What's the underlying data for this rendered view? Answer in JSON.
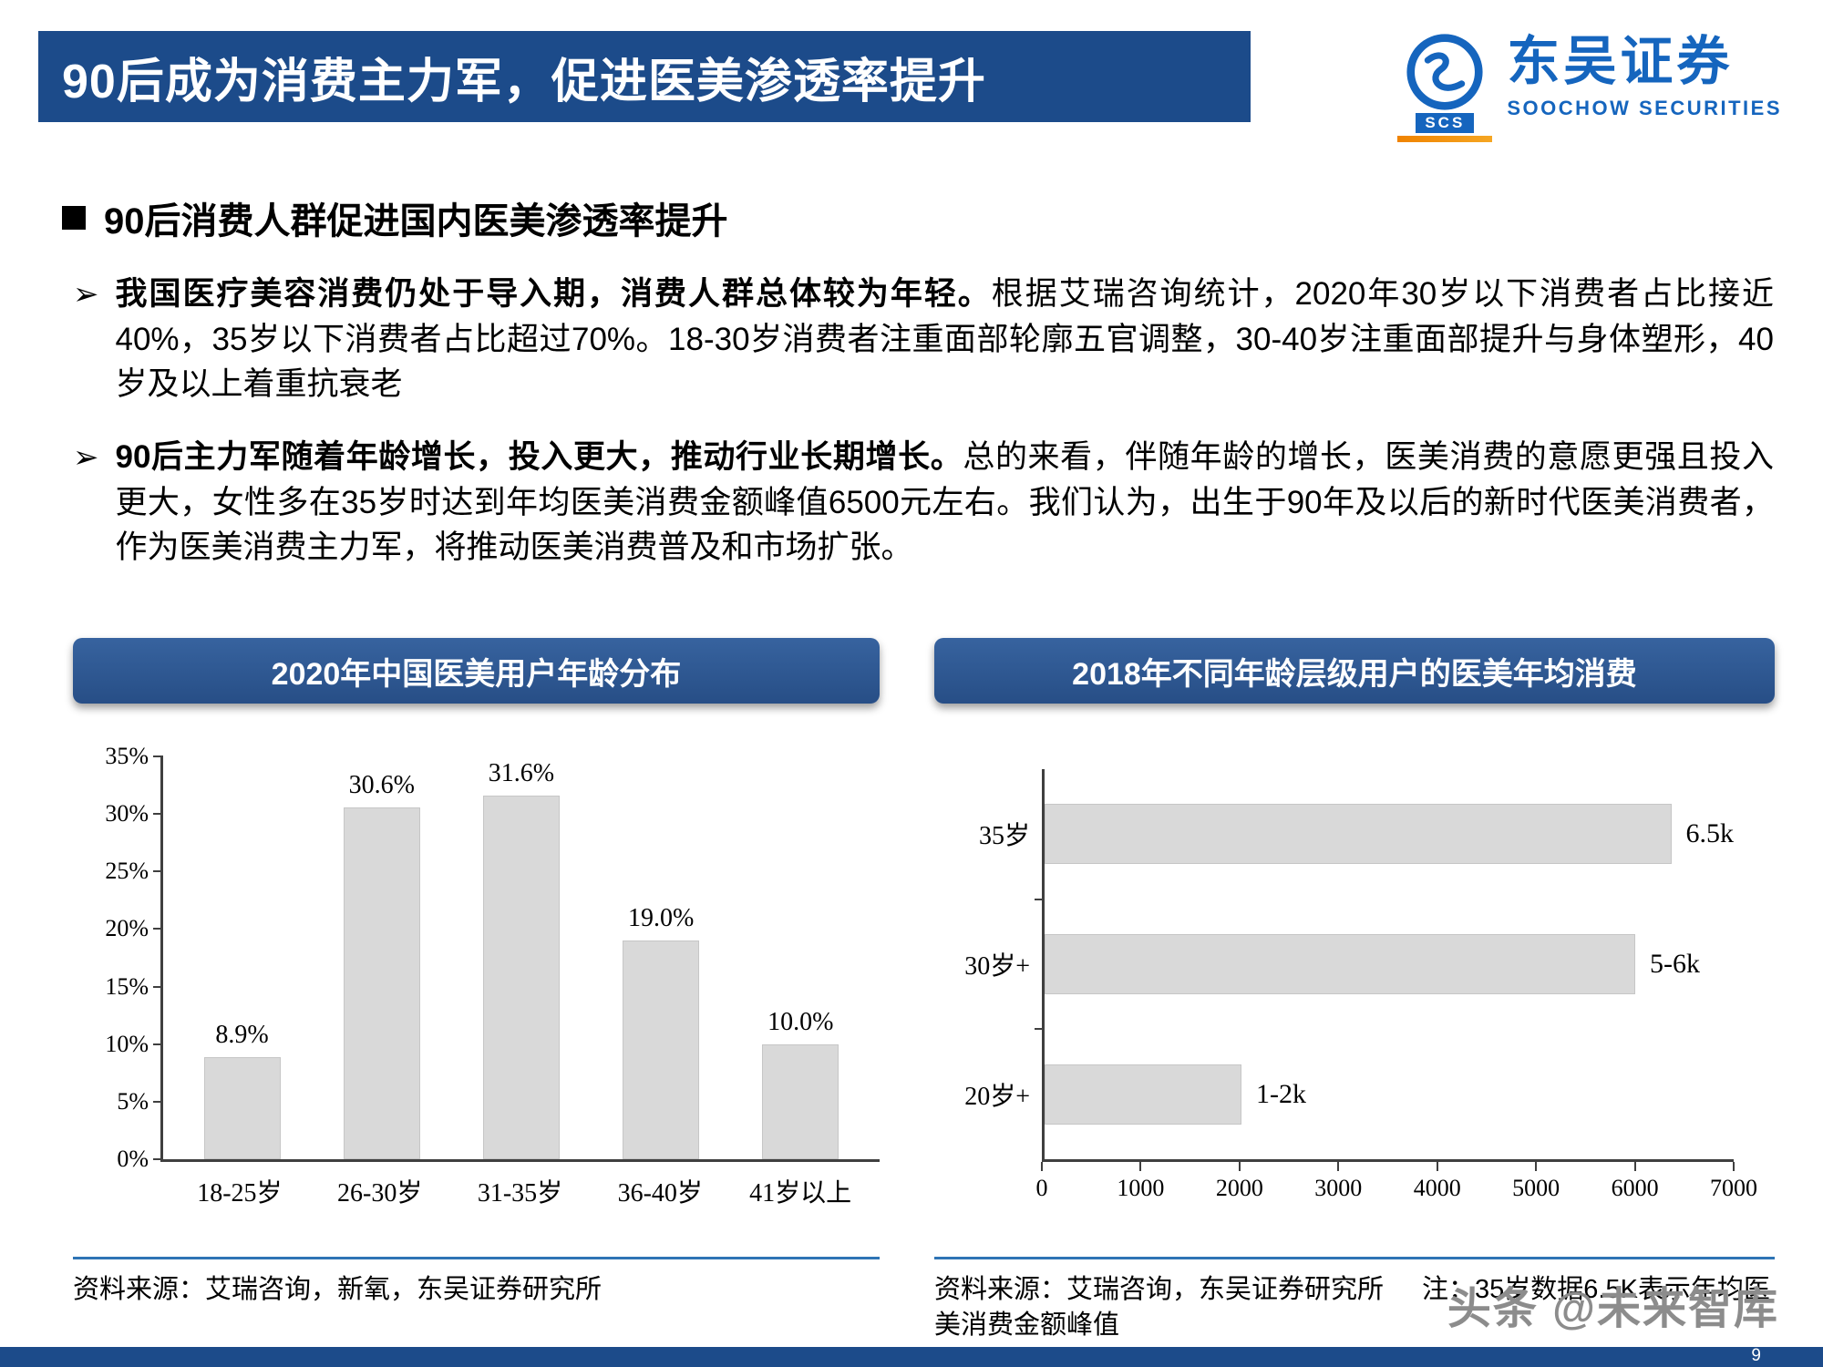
{
  "page": {
    "title": "90后成为消费主力军，促进医美渗透率提升",
    "page_number": "9",
    "watermark": "头条 @未来智库"
  },
  "logo": {
    "brand_cn": "东吴证券",
    "brand_en": "SOOCHOW SECURITIES",
    "badge": "SCS"
  },
  "icons": {
    "arrow_bullet": "➢"
  },
  "content": {
    "section_heading": "90后消费人群促进国内医美渗透率提升",
    "bullets": [
      {
        "bold": "我国医疗美容消费仍处于导入期，消费人群总体较为年轻。",
        "text": "根据艾瑞咨询统计，2020年30岁以下消费者占比接近40%，35岁以下消费者占比超过70%。18-30岁消费者注重面部轮廓五官调整，30-40岁注重面部提升与身体塑形，40岁及以上着重抗衰老"
      },
      {
        "bold": "90后主力军随着年龄增长，投入更大，推动行业长期增长。",
        "text": "总的来看，伴随年龄的增长，医美消费的意愿更强且投入更大，女性多在35岁时达到年均医美消费金额峰值6500元左右。我们认为，出生于90年及以后的新时代医美消费者，作为医美消费主力军，将推动医美消费普及和市场扩张。"
      }
    ]
  },
  "charts": {
    "left": {
      "title": "2020年中国医美用户年龄分布",
      "source": "资料来源：艾瑞咨询，新氧，东吴证券研究所"
    },
    "right": {
      "title": "2018年不同年龄层级用户的医美年均消费",
      "source": "资料来源：艾瑞咨询，东吴证券研究所",
      "note": "注：35岁数据6.5K表示年均医美消费金额峰值"
    }
  },
  "chart_data": [
    {
      "type": "bar",
      "title": "2020年中国医美用户年龄分布",
      "categories": [
        "18-25岁",
        "26-30岁",
        "31-35岁",
        "36-40岁",
        "41岁以上"
      ],
      "values": [
        8.9,
        30.6,
        31.6,
        19.0,
        10.0
      ],
      "labels": [
        "8.9%",
        "30.6%",
        "31.6%",
        "19.0%",
        "10.0%"
      ],
      "ylim": [
        0,
        35
      ],
      "ytick_step": 5,
      "ytick_suffix": "%",
      "bar_color": "#d9d9d9",
      "grid": false,
      "legend": false
    },
    {
      "type": "bar-horizontal",
      "title": "2018年不同年龄层级用户的医美年均消费",
      "categories": [
        "35岁",
        "30岁+",
        "20岁+"
      ],
      "values": [
        6500,
        6000,
        2000
      ],
      "labels": [
        "6.5k",
        "5-6k",
        "1-2k"
      ],
      "xlim": [
        0,
        7000
      ],
      "xtick_step": 1000,
      "bar_color": "#d9d9d9",
      "grid": false,
      "legend": false
    }
  ]
}
